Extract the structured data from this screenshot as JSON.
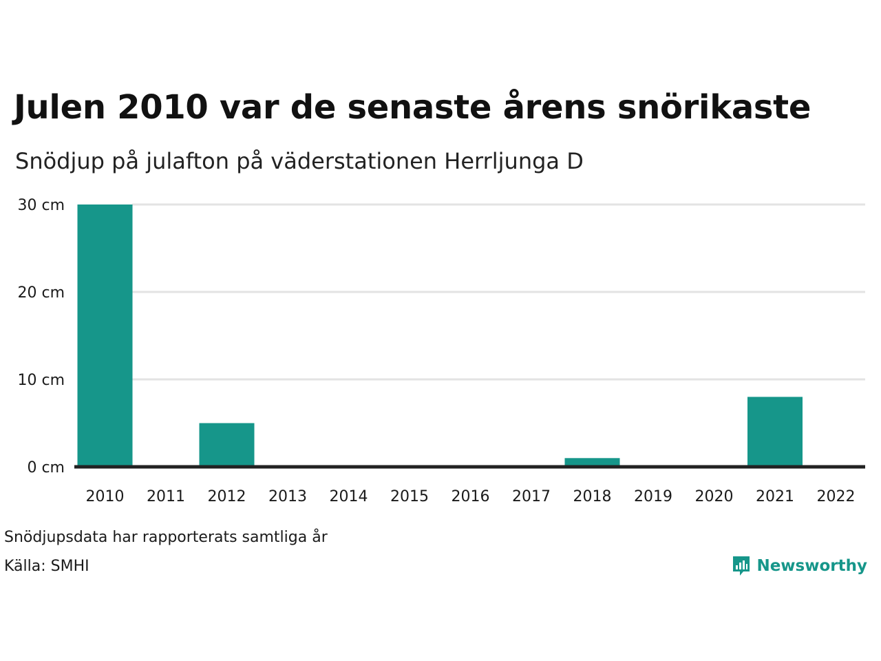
{
  "header": {
    "title": "Julen 2010 var de senaste årens snörikaste",
    "subtitle": "Snödjup på julafton på väderstationen Herrljunga D"
  },
  "footer": {
    "note": "Snödjupsdata har rapporterats samtliga år",
    "source": "Källa: SMHI",
    "brand": "Newsworthy",
    "brand_icon": "bar-chart-speech-bubble-icon"
  },
  "colors": {
    "bar": "#16968a",
    "grid": "#e3e3e3",
    "baseline": "#222222",
    "brand": "#16968a"
  },
  "chart_data": {
    "type": "bar",
    "categories": [
      "2010",
      "2011",
      "2012",
      "2013",
      "2014",
      "2015",
      "2016",
      "2017",
      "2018",
      "2019",
      "2020",
      "2021",
      "2022"
    ],
    "values": [
      30,
      0,
      5,
      0,
      0,
      0,
      0,
      0,
      1,
      0,
      0,
      8,
      0
    ],
    "yticks": [
      0,
      10,
      20,
      30
    ],
    "ytick_labels": [
      "0 cm",
      "10 cm",
      "20 cm",
      "30 cm"
    ],
    "ylim": [
      0,
      30
    ],
    "grid": true
  }
}
